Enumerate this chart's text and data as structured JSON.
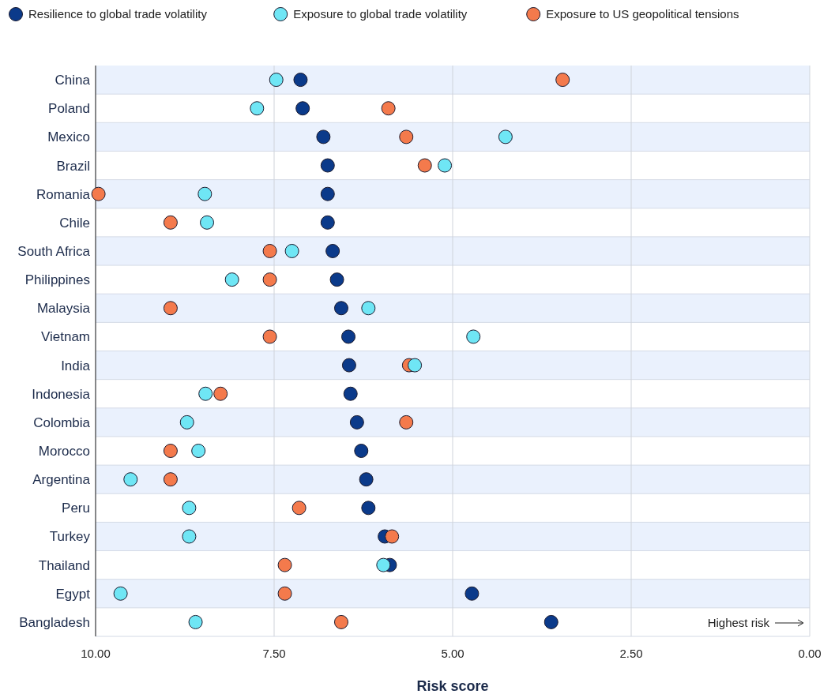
{
  "chart_data": {
    "type": "scatter",
    "orientation": "horizontal",
    "xlabel": "Risk score",
    "categories": [
      "China",
      "Poland",
      "Mexico",
      "Brazil",
      "Romania",
      "Chile",
      "South Africa",
      "Philippines",
      "Malaysia",
      "Vietnam",
      "India",
      "Indonesia",
      "Colombia",
      "Morocco",
      "Argentina",
      "Peru",
      "Turkey",
      "Thailand",
      "Egypt",
      "Bangladesh"
    ],
    "series": [
      {
        "name": "Resilience to global trade volatility",
        "color": "#0b3a8a",
        "values": [
          7.13,
          7.1,
          6.81,
          6.75,
          6.75,
          6.75,
          6.68,
          6.62,
          6.56,
          6.46,
          6.45,
          6.43,
          6.34,
          6.28,
          6.21,
          6.18,
          5.95,
          5.88,
          4.73,
          3.62
        ]
      },
      {
        "name": "Exposure to global trade volatility",
        "color": "#6fe6f5",
        "values": [
          7.47,
          7.74,
          4.26,
          5.11,
          8.47,
          8.44,
          7.25,
          8.09,
          6.18,
          4.71,
          5.53,
          8.46,
          8.72,
          8.56,
          9.51,
          8.69,
          8.69,
          5.97,
          9.65,
          8.6
        ]
      },
      {
        "name": "Exposure to US geopolitical tensions",
        "color": "#f47a4c",
        "values": [
          3.46,
          5.9,
          5.65,
          5.39,
          9.96,
          8.95,
          7.56,
          7.56,
          8.95,
          7.56,
          5.61,
          8.25,
          5.65,
          8.95,
          8.95,
          7.15,
          5.85,
          7.35,
          7.35,
          6.56
        ]
      }
    ],
    "xlim": [
      10,
      0
    ],
    "xticks": [
      {
        "value": 10,
        "label": "10.00"
      },
      {
        "value": 7.5,
        "label": "7.50"
      },
      {
        "value": 5,
        "label": "5.00"
      },
      {
        "value": 2.5,
        "label": "2.50"
      },
      {
        "value": 0,
        "label": "0.00"
      }
    ],
    "grid": "x",
    "legend": "top left",
    "marker": "circle",
    "annotations": [
      "Highest risk"
    ]
  }
}
